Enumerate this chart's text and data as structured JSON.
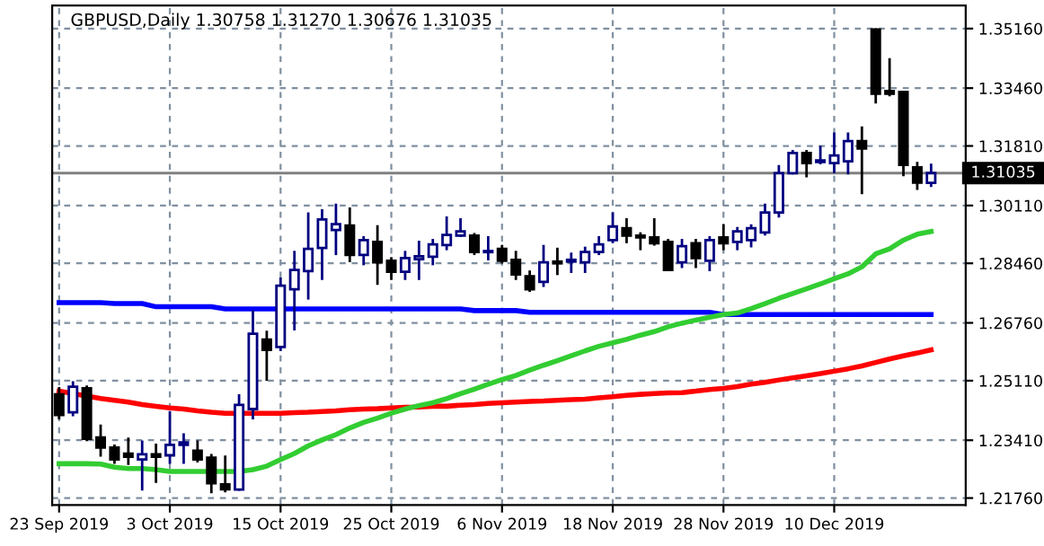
{
  "chart_data": {
    "type": "candlestick",
    "title": "GBPUSD,Daily 1.30758 1.31270 1.30676 1.31035",
    "categories": [
      "23 Sep 2019",
      null,
      null,
      null,
      null,
      null,
      null,
      null,
      "3 Oct 2019",
      null,
      null,
      null,
      null,
      null,
      null,
      null,
      "15 Oct 2019",
      null,
      null,
      null,
      null,
      null,
      null,
      null,
      "25 Oct 2019",
      null,
      null,
      null,
      null,
      null,
      null,
      null,
      "6 Nov 2019",
      null,
      null,
      null,
      null,
      null,
      null,
      null,
      "18 Nov 2019",
      null,
      null,
      null,
      null,
      null,
      null,
      null,
      "28 Nov 2019",
      null,
      null,
      null,
      null,
      null,
      null,
      null,
      "10 Dec 2019",
      null,
      null,
      null,
      null,
      null,
      null,
      null
    ],
    "ohlc": [
      [
        1.2472,
        1.2489,
        1.2404,
        1.2413
      ],
      [
        1.2421,
        1.2506,
        1.2413,
        1.2494
      ],
      [
        1.2489,
        1.2494,
        1.2342,
        1.2345
      ],
      [
        1.2349,
        1.2382,
        1.2298,
        1.232
      ],
      [
        1.232,
        1.2325,
        1.2277,
        1.2286
      ],
      [
        1.2303,
        1.2345,
        1.2274,
        1.2294
      ],
      [
        1.2286,
        1.2337,
        1.2201,
        1.2301
      ],
      [
        1.2301,
        1.2328,
        1.2223,
        1.2294
      ],
      [
        1.2298,
        1.2421,
        1.2277,
        1.2328
      ],
      [
        1.2328,
        1.2357,
        1.2277,
        1.2335
      ],
      [
        1.2311,
        1.2337,
        1.2281,
        1.2286
      ],
      [
        1.2291,
        1.2298,
        1.2193,
        1.2218
      ],
      [
        1.2215,
        1.2294,
        1.2196,
        1.2201
      ],
      [
        1.22,
        1.2469,
        1.22,
        1.2442
      ],
      [
        1.243,
        1.2709,
        1.2404,
        1.2645
      ],
      [
        1.2628,
        1.265,
        1.2514,
        1.2599
      ],
      [
        1.2607,
        1.2802,
        1.2599,
        1.2782
      ],
      [
        1.2772,
        1.2878,
        1.2658,
        1.2827
      ],
      [
        1.2824,
        1.2988,
        1.2746,
        1.2887
      ],
      [
        1.289,
        1.2997,
        1.2802,
        1.2971
      ],
      [
        1.2941,
        1.3013,
        1.2873,
        1.2958
      ],
      [
        1.2954,
        1.3002,
        1.2853,
        1.287
      ],
      [
        1.287,
        1.292,
        1.2844,
        1.2912
      ],
      [
        1.2907,
        1.2951,
        1.2788,
        1.2849
      ],
      [
        1.2853,
        1.286,
        1.2802,
        1.2822
      ],
      [
        1.2822,
        1.2878,
        1.2802,
        1.2861
      ],
      [
        1.2858,
        1.2907,
        1.2802,
        1.2866
      ],
      [
        1.2865,
        1.2912,
        1.2844,
        1.29
      ],
      [
        1.2898,
        1.2976,
        1.2887,
        1.2927
      ],
      [
        1.2925,
        1.2971,
        1.2925,
        1.2937
      ],
      [
        1.2925,
        1.2929,
        1.2873,
        1.2878
      ],
      [
        1.2878,
        1.292,
        1.2858,
        1.2881
      ],
      [
        1.2887,
        1.2895,
        1.2849,
        1.2853
      ],
      [
        1.2856,
        1.2878,
        1.2802,
        1.2814
      ],
      [
        1.2809,
        1.2822,
        1.2768,
        1.2772
      ],
      [
        1.2793,
        1.2895,
        1.2782,
        1.2849
      ],
      [
        1.2851,
        1.2887,
        1.2816,
        1.2846
      ],
      [
        1.2851,
        1.2873,
        1.2822,
        1.2856
      ],
      [
        1.2849,
        1.289,
        1.2822,
        1.2878
      ],
      [
        1.2878,
        1.292,
        1.2873,
        1.29
      ],
      [
        1.2912,
        1.2988,
        1.2907,
        1.2951
      ],
      [
        1.2946,
        1.2971,
        1.2907,
        1.2925
      ],
      [
        1.2925,
        1.2931,
        1.2887,
        1.292
      ],
      [
        1.292,
        1.2971,
        1.29,
        1.2903
      ],
      [
        1.2907,
        1.2912,
        1.2827,
        1.2827
      ],
      [
        1.2849,
        1.2912,
        1.2836,
        1.2895
      ],
      [
        1.2903,
        1.2912,
        1.2836,
        1.2861
      ],
      [
        1.2853,
        1.292,
        1.2827,
        1.2912
      ],
      [
        1.292,
        1.2954,
        1.2887,
        1.2903
      ],
      [
        1.2907,
        1.2946,
        1.2887,
        1.2937
      ],
      [
        1.2912,
        1.2954,
        1.2895,
        1.2946
      ],
      [
        1.2934,
        1.3013,
        1.2929,
        1.2991
      ],
      [
        1.2991,
        1.3123,
        1.298,
        1.3103
      ],
      [
        1.3103,
        1.3166,
        1.3103,
        1.3161
      ],
      [
        1.3161,
        1.3166,
        1.3095,
        1.3132
      ],
      [
        1.3135,
        1.3178,
        1.3132,
        1.314
      ],
      [
        1.3132,
        1.3216,
        1.3107,
        1.3154
      ],
      [
        1.3137,
        1.3216,
        1.3103,
        1.3195
      ],
      [
        1.3195,
        1.3233,
        1.3047,
        1.3174
      ],
      [
        1.3513,
        1.3513,
        1.3306,
        1.333
      ],
      [
        1.3338,
        1.3428,
        1.3326,
        1.333
      ],
      [
        1.3335,
        1.3335,
        1.3098,
        1.3127
      ],
      [
        1.312,
        1.3132,
        1.3059,
        1.3076
      ],
      [
        1.30758,
        1.3127,
        1.30676,
        1.31035
      ]
    ],
    "colors": [
      "#000000",
      "#000080",
      "#000000",
      "#000000",
      "#000000",
      "#000000",
      "#000080",
      "#000000",
      "#000080",
      "#000080",
      "#000000",
      "#000000",
      "#000000",
      "#000080",
      "#000080",
      "#000000",
      "#000080",
      "#000080",
      "#000080",
      "#000080",
      "#000080",
      "#000000",
      "#000080",
      "#000000",
      "#000000",
      "#000080",
      "#000080",
      "#000080",
      "#000080",
      "#000080",
      "#000000",
      "#000080",
      "#000000",
      "#000000",
      "#000000",
      "#000080",
      "#000000",
      "#000080",
      "#000080",
      "#000080",
      "#000080",
      "#000000",
      "#000000",
      "#000000",
      "#000000",
      "#000080",
      "#000000",
      "#000080",
      "#000000",
      "#000080",
      "#000080",
      "#000080",
      "#000080",
      "#000080",
      "#000000",
      "#000080",
      "#000080",
      "#000080",
      "#000000",
      "#000000",
      "#000000",
      "#000000",
      "#000000",
      "#000080"
    ],
    "series": [
      {
        "type": "line",
        "color": "#0000ff",
        "values": [
          1.2734,
          1.2734,
          1.2734,
          1.2734,
          1.2731,
          1.2731,
          1.2731,
          1.2722,
          1.2722,
          1.2722,
          1.2722,
          1.2722,
          1.2716,
          1.2716,
          1.2716,
          1.2716,
          1.2716,
          1.2716,
          1.2716,
          1.2716,
          1.2716,
          1.2716,
          1.2716,
          1.2716,
          1.2716,
          1.2716,
          1.2716,
          1.2716,
          1.2716,
          1.2716,
          1.2711,
          1.2711,
          1.2711,
          1.2711,
          1.2706,
          1.2706,
          1.2706,
          1.2706,
          1.2706,
          1.2706,
          1.2706,
          1.2706,
          1.2706,
          1.2706,
          1.2706,
          1.2706,
          1.2706,
          1.2706,
          1.27,
          1.27,
          1.27,
          1.27,
          1.27,
          1.27,
          1.27,
          1.27,
          1.27,
          1.27,
          1.27,
          1.27,
          1.27,
          1.27,
          1.27,
          1.27
        ]
      },
      {
        "type": "line",
        "color": "#ff0000",
        "values": [
          1.2481,
          1.2474,
          1.2467,
          1.246,
          1.2455,
          1.245,
          1.2443,
          1.2438,
          1.2433,
          1.243,
          1.2425,
          1.2421,
          1.2418,
          1.2418,
          1.2418,
          1.2418,
          1.2418,
          1.242,
          1.2421,
          1.2423,
          1.2425,
          1.2428,
          1.243,
          1.2431,
          1.2433,
          1.2435,
          1.2436,
          1.2438,
          1.2438,
          1.2441,
          1.2443,
          1.2446,
          1.2448,
          1.245,
          1.2452,
          1.2453,
          1.2455,
          1.2457,
          1.2458,
          1.2462,
          1.2465,
          1.2469,
          1.2472,
          1.2474,
          1.2476,
          1.2477,
          1.2481,
          1.2486,
          1.2489,
          1.2494,
          1.2501,
          1.2506,
          1.2513,
          1.2519,
          1.2525,
          1.2531,
          1.2538,
          1.2545,
          1.2553,
          1.2563,
          1.2573,
          1.2582,
          1.259,
          1.2599
        ]
      },
      {
        "type": "line",
        "color": "#32cd32",
        "values": [
          1.2274,
          1.2274,
          1.2274,
          1.2273,
          1.2264,
          1.226,
          1.226,
          1.2257,
          1.2252,
          1.2252,
          1.2252,
          1.2252,
          1.2252,
          1.2252,
          1.2257,
          1.2267,
          1.2286,
          1.2303,
          1.2325,
          1.2342,
          1.2357,
          1.2376,
          1.2392,
          1.2404,
          1.2418,
          1.243,
          1.244,
          1.2448,
          1.246,
          1.2474,
          1.2487,
          1.2501,
          1.2514,
          1.2526,
          1.2541,
          1.2555,
          1.2568,
          1.2582,
          1.2596,
          1.2609,
          1.2619,
          1.2629,
          1.2641,
          1.2651,
          1.2665,
          1.2675,
          1.2684,
          1.2692,
          1.27,
          1.2704,
          1.2717,
          1.2731,
          1.2746,
          1.276,
          1.2773,
          1.2787,
          1.2802,
          1.2816,
          1.2836,
          1.2873,
          1.2887,
          1.2912,
          1.2929,
          1.2937
        ]
      }
    ],
    "ylim": [
      1.2156,
      1.3582
    ],
    "yticks": [
      {
        "value": 1.2176,
        "label": "1.21760"
      },
      {
        "value": 1.2341,
        "label": "1.23410"
      },
      {
        "value": 1.2511,
        "label": "1.25110"
      },
      {
        "value": 1.2676,
        "label": "1.26760"
      },
      {
        "value": 1.2846,
        "label": "1.28460"
      },
      {
        "value": 1.3011,
        "label": "1.30110"
      },
      {
        "value": 1.3181,
        "label": "1.31810"
      },
      {
        "value": 1.3346,
        "label": "1.33460"
      },
      {
        "value": 1.3516,
        "label": "1.35160"
      }
    ],
    "ref_lines": [
      {
        "axis": "y",
        "value": 1.31035,
        "label": "1.31035",
        "color": "#808080"
      }
    ],
    "grid": true,
    "legend": false
  }
}
